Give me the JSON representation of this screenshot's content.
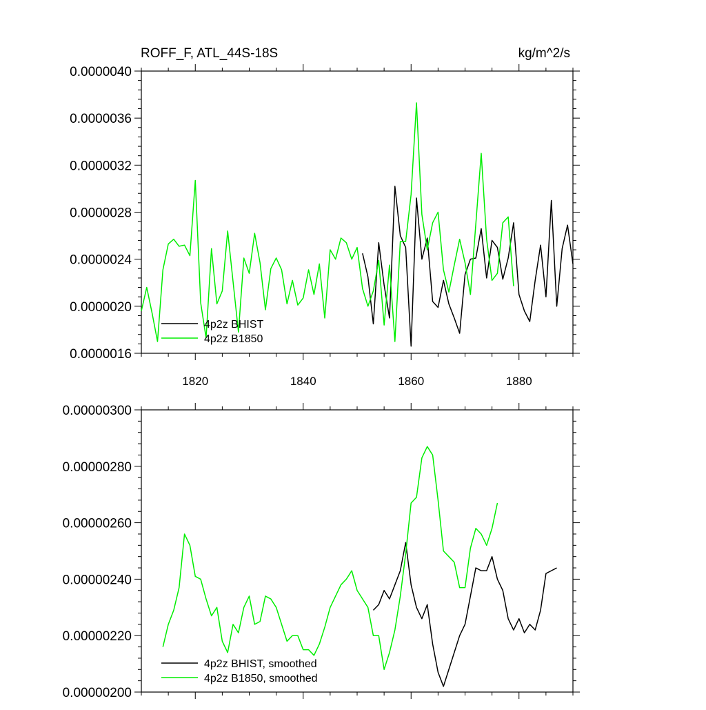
{
  "chart_data": [
    {
      "type": "line",
      "title": "ROFF_F, ATL_44S-18S",
      "units": "kg/m^2/s",
      "xlim": [
        1810,
        1890
      ],
      "ylim": [
        1.6e-06,
        4e-06
      ],
      "x_ticks": [
        1820,
        1840,
        1860,
        1880
      ],
      "x_tick_labels": [
        "1820",
        "1840",
        "1860",
        "1880"
      ],
      "y_ticks": [
        1.6e-06,
        2e-06,
        2.4e-06,
        2.8e-06,
        3.2e-06,
        3.6e-06,
        4e-06
      ],
      "y_tick_labels": [
        "0.0000016",
        "0.0000020",
        "0.0000024",
        "0.0000028",
        "0.0000032",
        "0.0000036",
        "0.0000040"
      ],
      "legend_position": "bottom-left",
      "series": [
        {
          "name": "4p2z BHIST",
          "color": "#000000",
          "x": [
            1851,
            1852,
            1853,
            1854,
            1855,
            1856,
            1857,
            1858,
            1859,
            1860,
            1861,
            1862,
            1863,
            1864,
            1865,
            1866,
            1867,
            1868,
            1869,
            1870,
            1871,
            1872,
            1873,
            1874,
            1875,
            1876,
            1877,
            1878,
            1879,
            1880,
            1881,
            1882,
            1883,
            1884,
            1885,
            1886,
            1887,
            1888,
            1889,
            1890
          ],
          "y": [
            2.45e-06,
            2.25e-06,
            1.85e-06,
            2.54e-06,
            2.18e-06,
            1.9e-06,
            3.02e-06,
            2.6e-06,
            2.5e-06,
            1.66e-06,
            2.92e-06,
            2.4e-06,
            2.58e-06,
            2.04e-06,
            1.99e-06,
            2.22e-06,
            2.02e-06,
            1.9e-06,
            1.77e-06,
            2.27e-06,
            2.4e-06,
            2.41e-06,
            2.66e-06,
            2.24e-06,
            2.56e-06,
            2.5e-06,
            2.23e-06,
            2.41e-06,
            2.71e-06,
            2.1e-06,
            1.96e-06,
            1.87e-06,
            2.22e-06,
            2.52e-06,
            2.08e-06,
            2.9e-06,
            2e-06,
            2.49e-06,
            2.69e-06,
            2.36e-06
          ]
        },
        {
          "name": "4p2z B1850",
          "color": "#00ee00",
          "x": [
            1810,
            1811,
            1812,
            1813,
            1814,
            1815,
            1816,
            1817,
            1818,
            1819,
            1820,
            1821,
            1822,
            1823,
            1824,
            1825,
            1826,
            1827,
            1828,
            1829,
            1830,
            1831,
            1832,
            1833,
            1834,
            1835,
            1836,
            1837,
            1838,
            1839,
            1840,
            1841,
            1842,
            1843,
            1844,
            1845,
            1846,
            1847,
            1848,
            1849,
            1850,
            1851,
            1852,
            1853,
            1854,
            1855,
            1856,
            1857,
            1858,
            1859,
            1860,
            1861,
            1862,
            1863,
            1864,
            1865,
            1866,
            1867,
            1868,
            1869,
            1870,
            1871,
            1872,
            1873,
            1874,
            1875,
            1876,
            1877,
            1878,
            1879
          ],
          "y": [
            1.96e-06,
            2.16e-06,
            1.94e-06,
            1.7e-06,
            2.31e-06,
            2.53e-06,
            2.57e-06,
            2.51e-06,
            2.52e-06,
            2.43e-06,
            3.07e-06,
            2.03e-06,
            1.73e-06,
            2.49e-06,
            2.02e-06,
            2.13e-06,
            2.64e-06,
            2.21e-06,
            1.78e-06,
            2.41e-06,
            2.28e-06,
            2.62e-06,
            2.37e-06,
            1.97e-06,
            2.32e-06,
            2.41e-06,
            2.31e-06,
            2.02e-06,
            2.22e-06,
            2.01e-06,
            2.07e-06,
            2.31e-06,
            2.1e-06,
            2.36e-06,
            1.9e-06,
            2.48e-06,
            2.4e-06,
            2.58e-06,
            2.54e-06,
            2.4e-06,
            2.5e-06,
            2.15e-06,
            2e-06,
            2.13e-06,
            2.39e-06,
            1.84e-06,
            2.35e-06,
            1.7e-06,
            2.55e-06,
            2.55e-06,
            2.95e-06,
            3.73e-06,
            2.78e-06,
            2.48e-06,
            2.71e-06,
            2.8e-06,
            2.31e-06,
            2.12e-06,
            2.35e-06,
            2.57e-06,
            2.37e-06,
            2.1e-06,
            2.7e-06,
            3.3e-06,
            2.57e-06,
            2.22e-06,
            2.28e-06,
            2.71e-06,
            2.76e-06,
            2.17e-06
          ]
        }
      ]
    },
    {
      "type": "line",
      "title": "",
      "xlim": [
        1810,
        1890
      ],
      "ylim": [
        2e-06,
        3e-06
      ],
      "x_ticks": [
        1820,
        1840,
        1860,
        1880
      ],
      "y_ticks": [
        2e-06,
        2.2e-06,
        2.4e-06,
        2.6e-06,
        2.8e-06,
        3e-06
      ],
      "y_tick_labels": [
        "0.00000200",
        "0.00000220",
        "0.00000240",
        "0.00000260",
        "0.00000280",
        "0.00000300"
      ],
      "legend_position": "bottom-left",
      "series": [
        {
          "name": "4p2z BHIST, smoothed",
          "color": "#000000",
          "x": [
            1853,
            1854,
            1855,
            1856,
            1857,
            1858,
            1859,
            1860,
            1861,
            1862,
            1863,
            1864,
            1865,
            1866,
            1867,
            1868,
            1869,
            1870,
            1871,
            1872,
            1873,
            1874,
            1875,
            1876,
            1877,
            1878,
            1879,
            1880,
            1881,
            1882,
            1883,
            1884,
            1885,
            1886,
            1887
          ],
          "y": [
            2.29e-06,
            2.31e-06,
            2.36e-06,
            2.33e-06,
            2.38e-06,
            2.43e-06,
            2.53e-06,
            2.38e-06,
            2.3e-06,
            2.26e-06,
            2.31e-06,
            2.17e-06,
            2.07e-06,
            2.02e-06,
            2.08e-06,
            2.14e-06,
            2.2e-06,
            2.24e-06,
            2.34e-06,
            2.44e-06,
            2.43e-06,
            2.43e-06,
            2.48e-06,
            2.4e-06,
            2.36e-06,
            2.26e-06,
            2.22e-06,
            2.26e-06,
            2.21e-06,
            2.24e-06,
            2.22e-06,
            2.29e-06,
            2.42e-06,
            2.43e-06,
            2.44e-06
          ]
        },
        {
          "name": "4p2z B1850, smoothed",
          "color": "#00ee00",
          "x": [
            1814,
            1815,
            1816,
            1817,
            1818,
            1819,
            1820,
            1821,
            1822,
            1823,
            1824,
            1825,
            1826,
            1827,
            1828,
            1829,
            1830,
            1831,
            1832,
            1833,
            1834,
            1835,
            1836,
            1837,
            1838,
            1839,
            1840,
            1841,
            1842,
            1843,
            1844,
            1845,
            1846,
            1847,
            1848,
            1849,
            1850,
            1851,
            1852,
            1853,
            1854,
            1855,
            1856,
            1857,
            1858,
            1859,
            1860,
            1861,
            1862,
            1863,
            1864,
            1865,
            1866,
            1867,
            1868,
            1869,
            1870,
            1871,
            1872,
            1873,
            1874,
            1875,
            1876
          ],
          "y": [
            2.16e-06,
            2.24e-06,
            2.29e-06,
            2.37e-06,
            2.56e-06,
            2.52e-06,
            2.41e-06,
            2.4e-06,
            2.33e-06,
            2.27e-06,
            2.3e-06,
            2.18e-06,
            2.14e-06,
            2.24e-06,
            2.21e-06,
            2.3e-06,
            2.34e-06,
            2.24e-06,
            2.25e-06,
            2.34e-06,
            2.33e-06,
            2.3e-06,
            2.24e-06,
            2.18e-06,
            2.2e-06,
            2.2e-06,
            2.15e-06,
            2.15e-06,
            2.13e-06,
            2.17e-06,
            2.23e-06,
            2.3e-06,
            2.34e-06,
            2.38e-06,
            2.4e-06,
            2.43e-06,
            2.36e-06,
            2.33e-06,
            2.3e-06,
            2.2e-06,
            2.2e-06,
            2.08e-06,
            2.14e-06,
            2.22e-06,
            2.34e-06,
            2.49e-06,
            2.67e-06,
            2.69e-06,
            2.83e-06,
            2.87e-06,
            2.84e-06,
            2.68e-06,
            2.5e-06,
            2.48e-06,
            2.46e-06,
            2.37e-06,
            2.37e-06,
            2.51e-06,
            2.58e-06,
            2.56e-06,
            2.52e-06,
            2.58e-06,
            2.67e-06
          ]
        }
      ]
    }
  ]
}
